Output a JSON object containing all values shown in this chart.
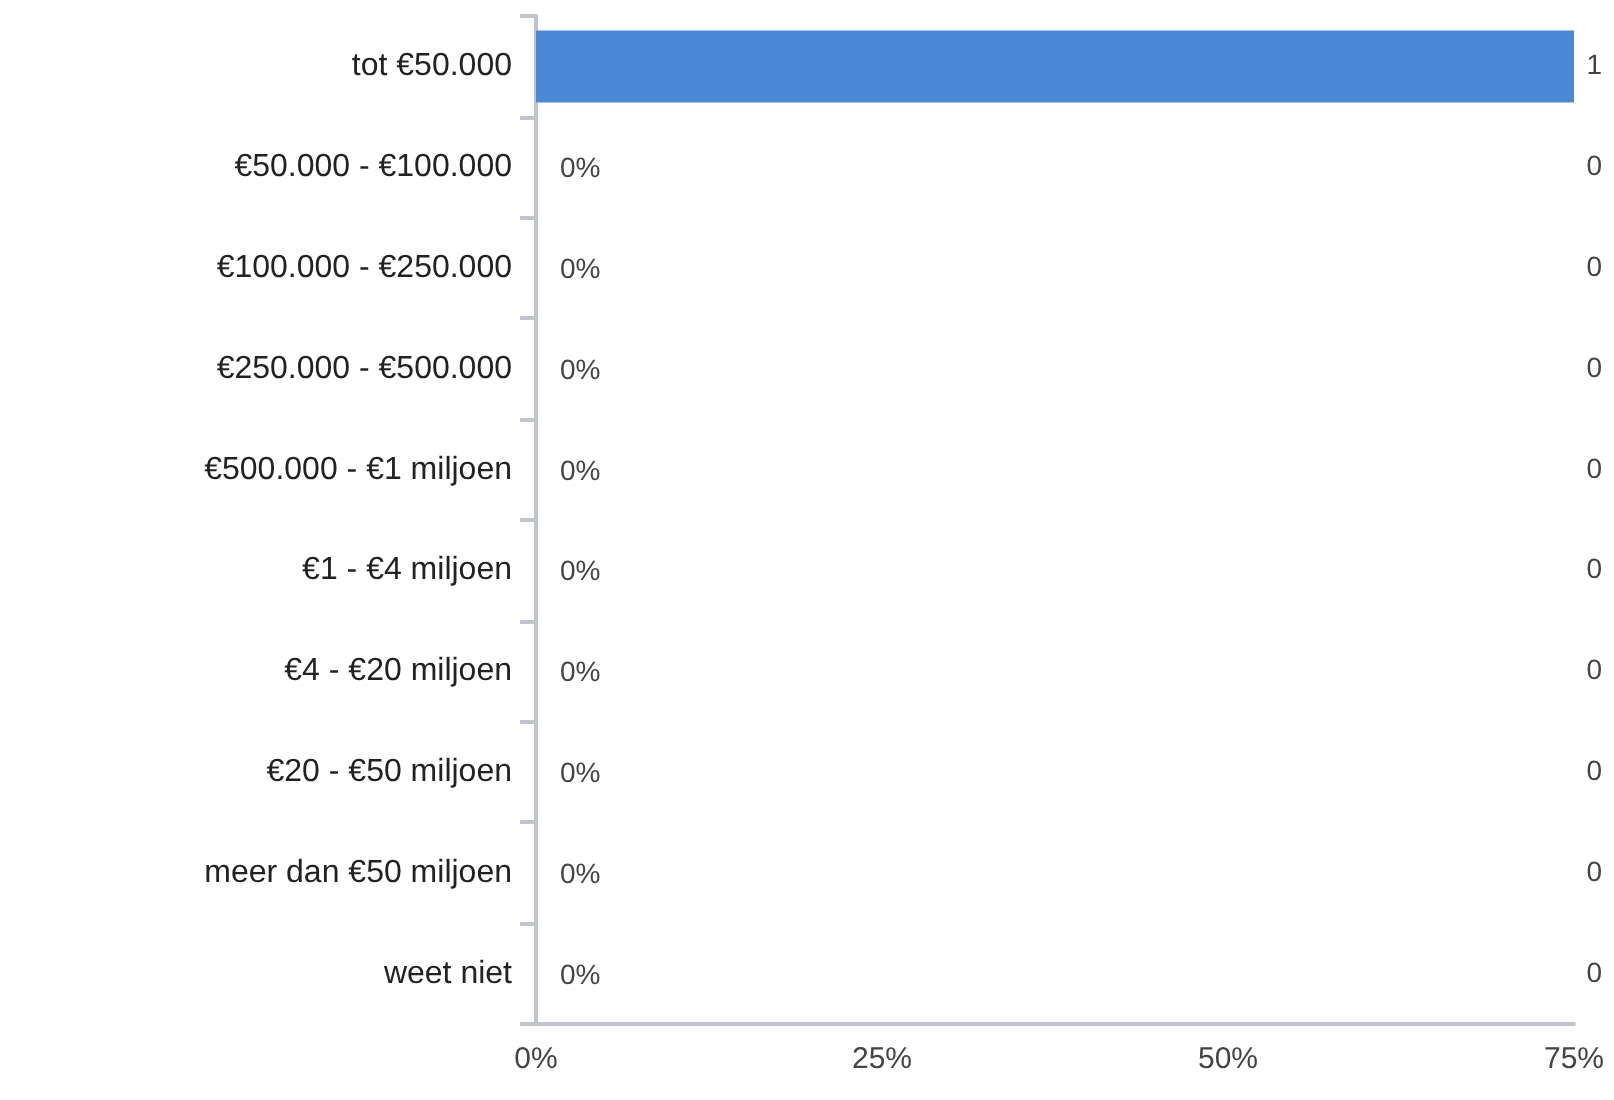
{
  "chart_data": {
    "type": "bar",
    "orientation": "horizontal",
    "categories": [
      "tot €50.000",
      "€50.000 - €100.000",
      "€100.000 - €250.000",
      "€250.000 - €500.000",
      "€500.000 - €1 miljoen",
      "€1 - €4 miljoen",
      "€4 - €20 miljoen",
      "€20 - €50 miljoen",
      "meer dan €50 miljoen",
      "weet niet"
    ],
    "values": [
      75,
      0,
      0,
      0,
      0,
      0,
      0,
      0,
      0,
      0
    ],
    "value_labels": [
      null,
      "0%",
      "0%",
      "0%",
      "0%",
      "0%",
      "0%",
      "0%",
      "0%",
      "0%"
    ],
    "color": "#4a89d4",
    "xlim": [
      0,
      75
    ],
    "xticks": [
      {
        "value": 0,
        "label": "0%"
      },
      {
        "value": 25,
        "label": "25%"
      },
      {
        "value": 50,
        "label": "50%"
      },
      {
        "value": 75,
        "label": "75%"
      }
    ],
    "annotations": [
      "1",
      "0",
      "0",
      "0",
      "0",
      "0",
      "0",
      "0",
      "0",
      "0"
    ],
    "grid": false
  }
}
